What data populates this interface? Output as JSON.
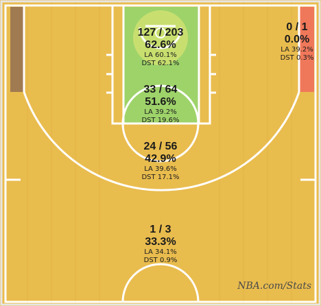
{
  "court": {
    "wood_color": "#e9bc4e",
    "line_color": "#ffffff",
    "border_color": "#d8d8d8"
  },
  "zones": [
    {
      "id": "restricted-area",
      "made_attempted": "127 / 203",
      "pct": "62.6%",
      "la": "LA 60.1%",
      "dst": "DST 62.1%",
      "color": "#9ed36a"
    },
    {
      "id": "in-the-paint",
      "made_attempted": "33 / 64",
      "pct": "51.6%",
      "la": "LA 39.2%",
      "dst": "DST 19.6%",
      "color": "#9ed36a"
    },
    {
      "id": "mid-range",
      "made_attempted": "24 / 56",
      "pct": "42.9%",
      "la": "LA 39.6%",
      "dst": "DST 17.1%",
      "color": ""
    },
    {
      "id": "right-corner-three",
      "made_attempted": "0 / 1",
      "pct": "0.0%",
      "la": "LA 39.2%",
      "dst": "DST 0.3%",
      "color": "#f0785a"
    },
    {
      "id": "above-break-three",
      "made_attempted": "1 / 3",
      "pct": "33.3%",
      "la": "LA 34.1%",
      "dst": "DST 0.9%",
      "color": ""
    }
  ],
  "left_corner_three": {
    "color": "#a07a50"
  },
  "watermark": "NBA.com/Stats"
}
